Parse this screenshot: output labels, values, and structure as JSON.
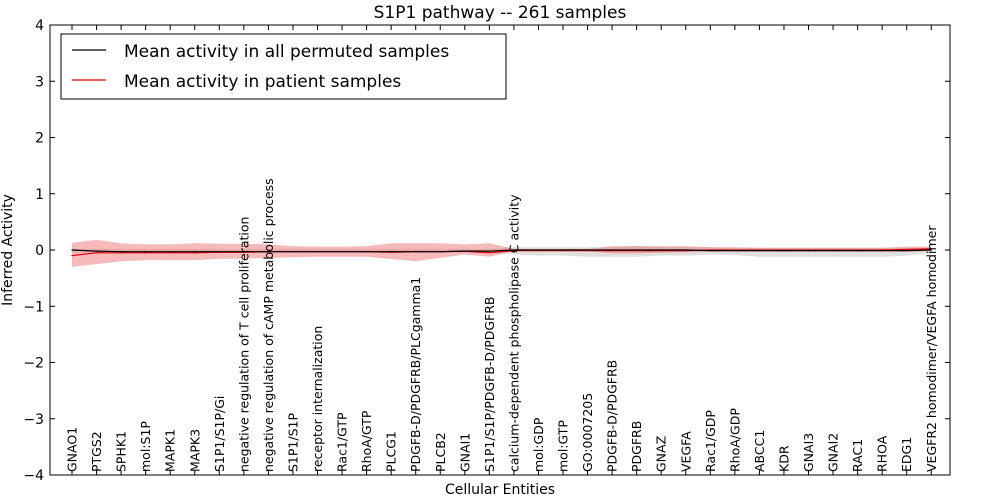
{
  "chart_data": {
    "type": "line",
    "title": "S1P1 pathway -- 261 samples",
    "xlabel": "Cellular Entities",
    "ylabel": "Inferred Activity",
    "ylim": [
      -4,
      4
    ],
    "yticks": [
      -4,
      -3,
      -2,
      -1,
      0,
      1,
      2,
      3,
      4
    ],
    "ytick_labels": [
      "−4",
      "−3",
      "−2",
      "−1",
      "0",
      "1",
      "2",
      "3",
      "4"
    ],
    "categories": [
      "GNAO1",
      "PTGS2",
      "SPHK1",
      "mol:S1P",
      "MAPK1",
      "MAPK3",
      "S1P1/S1P/Gi",
      "negative regulation of T cell proliferation",
      "negative regulation of cAMP metabolic process",
      "S1P1/S1P",
      "receptor internalization",
      "Rac1/GTP",
      "RhoA/GTP",
      "PLCG1",
      "PDGFB-D/PDGFRB/PLCgamma1",
      "PLCB2",
      "GNAI1",
      "S1P1/S1P/PDGFB-D/PDGFRB",
      "calcium-dependent phospholipase C activity",
      "mol:GDP",
      "mol:GTP",
      "GO:0007205",
      "PDGFB-D/PDGFRB",
      "PDGFRB",
      "GNAZ",
      "VEGFA",
      "Rac1/GDP",
      "RhoA/GDP",
      "ABCC1",
      "KDR",
      "GNAI3",
      "GNAI2",
      "RAC1",
      "RHOA",
      "EDG1",
      "VEGFR2 homodimer/VEGFA homodimer"
    ],
    "legend": {
      "location": "upper-left",
      "entries": [
        "Mean activity in all permuted samples",
        "Mean activity in patient samples"
      ]
    },
    "series": [
      {
        "name": "Mean activity in all permuted samples",
        "color": "#000000",
        "band_color": "#bbbbbb",
        "values": [
          0.0,
          -0.02,
          -0.03,
          -0.03,
          -0.03,
          -0.03,
          -0.03,
          -0.03,
          -0.03,
          -0.03,
          -0.03,
          -0.03,
          -0.03,
          -0.03,
          -0.03,
          -0.03,
          -0.02,
          -0.02,
          0.0,
          0.0,
          0.0,
          0.0,
          0.0,
          0.0,
          0.0,
          0.0,
          -0.01,
          -0.01,
          -0.01,
          -0.01,
          -0.01,
          -0.01,
          -0.01,
          -0.01,
          -0.01,
          0.0
        ],
        "band_upper": [
          0.02,
          0.02,
          0.02,
          0.02,
          0.02,
          0.02,
          0.02,
          0.02,
          0.02,
          0.02,
          0.02,
          0.02,
          0.02,
          0.02,
          0.02,
          0.02,
          0.02,
          0.02,
          0.05,
          0.05,
          0.05,
          0.05,
          0.07,
          0.07,
          0.07,
          0.05,
          0.05,
          0.04,
          0.04,
          0.04,
          0.04,
          0.04,
          0.04,
          0.04,
          0.04,
          0.04
        ],
        "band_lower": [
          -0.05,
          -0.05,
          -0.05,
          -0.05,
          -0.05,
          -0.05,
          -0.05,
          -0.05,
          -0.05,
          -0.05,
          -0.05,
          -0.05,
          -0.05,
          -0.05,
          -0.05,
          -0.05,
          -0.05,
          -0.05,
          -0.08,
          -0.1,
          -0.1,
          -0.12,
          -0.12,
          -0.12,
          -0.1,
          -0.1,
          -0.08,
          -0.09,
          -0.12,
          -0.12,
          -0.12,
          -0.12,
          -0.12,
          -0.12,
          -0.1,
          -0.05
        ]
      },
      {
        "name": "Mean activity in patient samples",
        "color": "#dd0000",
        "band_color": "#ee6666",
        "values": [
          -0.1,
          -0.05,
          -0.05,
          -0.05,
          -0.05,
          -0.05,
          -0.04,
          -0.04,
          -0.03,
          -0.03,
          -0.03,
          -0.03,
          -0.03,
          -0.04,
          -0.03,
          -0.03,
          -0.02,
          -0.05,
          -0.01,
          -0.01,
          -0.01,
          -0.01,
          -0.01,
          -0.01,
          -0.01,
          -0.01,
          0.0,
          0.0,
          0.0,
          0.0,
          0.0,
          0.0,
          0.0,
          0.0,
          0.01,
          0.02
        ],
        "band_upper": [
          0.13,
          0.18,
          0.12,
          0.1,
          0.1,
          0.12,
          0.11,
          0.11,
          0.1,
          0.07,
          0.06,
          0.06,
          0.07,
          0.12,
          0.12,
          0.12,
          0.1,
          0.12,
          0.02,
          0.02,
          0.02,
          0.02,
          0.06,
          0.07,
          0.06,
          0.07,
          0.05,
          0.05,
          0.04,
          0.04,
          0.04,
          0.04,
          0.04,
          0.04,
          0.06,
          0.06
        ],
        "band_lower": [
          -0.3,
          -0.25,
          -0.2,
          -0.18,
          -0.18,
          -0.18,
          -0.16,
          -0.15,
          -0.14,
          -0.13,
          -0.12,
          -0.12,
          -0.12,
          -0.16,
          -0.2,
          -0.14,
          -0.08,
          -0.12,
          -0.02,
          -0.02,
          -0.02,
          -0.02,
          -0.06,
          -0.06,
          -0.05,
          -0.04,
          -0.03,
          -0.03,
          -0.03,
          -0.03,
          -0.03,
          -0.03,
          -0.03,
          -0.03,
          -0.03,
          -0.02
        ]
      }
    ]
  }
}
